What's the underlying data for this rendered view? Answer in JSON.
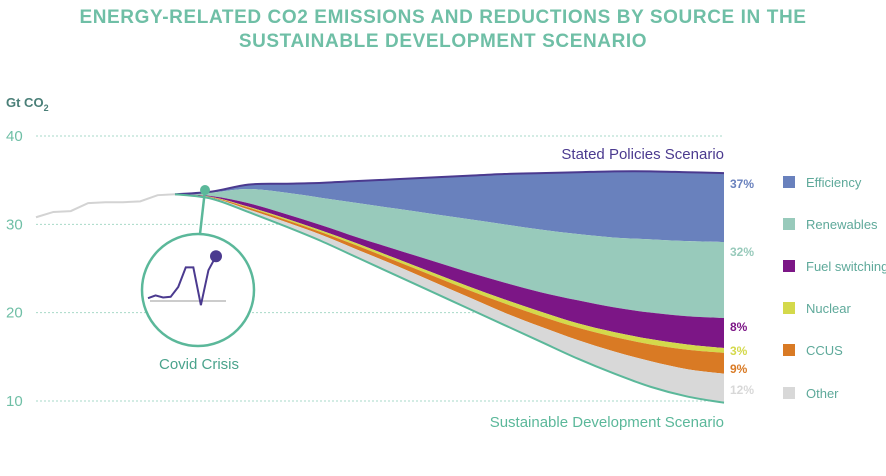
{
  "title_line1": "ENERGY-RELATED CO2 EMISSIONS AND REDUCTIONS BY SOURCE IN THE",
  "title_line2": "SUSTAINABLE DEVELOPMENT SCENARIO",
  "chart_data": {
    "type": "area",
    "title": "ENERGY-RELATED CO2 EMISSIONS AND REDUCTIONS BY SOURCE IN THE SUSTAINABLE DEVELOPMENT SCENARIO",
    "ylabel": "Gt CO2",
    "ylim": [
      9,
      41
    ],
    "yticks": [
      10,
      20,
      30,
      40
    ],
    "grid": true,
    "legend_position": "right",
    "historical": {
      "color": "#d3d3d3",
      "values": [
        30.8,
        31.4,
        31.5,
        32.4,
        32.5,
        32.5,
        32.6,
        33.3,
        33.4
      ]
    },
    "stated_policies": {
      "name": "Stated Policies Scenario",
      "color": "#4b3a8f",
      "values": [
        33.4,
        33.7,
        34.5,
        34.6,
        34.7,
        34.9,
        35.1,
        35.3,
        35.5,
        35.7,
        35.8,
        35.9,
        36.0,
        36.0,
        35.9,
        35.8
      ]
    },
    "sustainable_development": {
      "name": "Sustainable Development Scenario",
      "color": "#5bb89a",
      "values": [
        33.4,
        32.9,
        31.4,
        29.8,
        28.1,
        26.2,
        24.3,
        22.4,
        20.5,
        18.6,
        16.7,
        14.8,
        13.1,
        11.6,
        10.5,
        9.8
      ]
    },
    "wedges": [
      {
        "name": "Efficiency",
        "share": "37%",
        "color": "#6981bd",
        "bottom": [
          33.4,
          33.6,
          34.0,
          33.6,
          33.0,
          32.4,
          31.8,
          31.2,
          30.6,
          30.0,
          29.4,
          28.9,
          28.5,
          28.3,
          28.1,
          28.0
        ]
      },
      {
        "name": "Renewables",
        "share": "32%",
        "color": "#98cabb",
        "bottom": [
          33.4,
          33.2,
          32.4,
          31.2,
          29.9,
          28.5,
          27.2,
          25.9,
          24.6,
          23.4,
          22.3,
          21.4,
          20.6,
          20.0,
          19.6,
          19.4
        ]
      },
      {
        "name": "Fuel switching",
        "share": "8%",
        "color": "#7c1686",
        "bottom": [
          33.4,
          33.1,
          32.0,
          30.7,
          29.3,
          27.8,
          26.2,
          24.6,
          23.0,
          21.5,
          20.1,
          18.8,
          17.8,
          17.0,
          16.4,
          16.0
        ]
      },
      {
        "name": "Nuclear",
        "share": "3%",
        "color": "#d4d94b",
        "bottom": [
          33.4,
          33.05,
          31.9,
          30.55,
          29.1,
          27.55,
          25.9,
          24.25,
          22.6,
          21.05,
          19.6,
          18.3,
          17.25,
          16.4,
          15.8,
          15.45
        ]
      },
      {
        "name": "CCUS",
        "share": "9%",
        "color": "#d97a24",
        "bottom": [
          33.4,
          33.0,
          31.7,
          30.3,
          28.8,
          27.1,
          25.4,
          23.6,
          21.8,
          20.0,
          18.4,
          16.9,
          15.6,
          14.5,
          13.6,
          13.1
        ]
      },
      {
        "name": "Other",
        "share": "12%",
        "color": "#d8d8d8",
        "bottom": [
          33.4,
          32.9,
          31.4,
          29.8,
          28.1,
          26.2,
          24.3,
          22.4,
          20.5,
          18.6,
          16.7,
          14.8,
          13.1,
          11.6,
          10.5,
          9.8
        ]
      }
    ],
    "share_colors": [
      "#6981bd",
      "#98cabb",
      "#7c1686",
      "#d4d94b",
      "#d97a24",
      "#d8d8d8"
    ],
    "annotation": {
      "label": "Covid Crisis",
      "inset_values": [
        0.2,
        0.4,
        0.25,
        0.3,
        1.0,
        2.4,
        2.4,
        -0.3,
        2.2,
        3.2
      ]
    }
  }
}
